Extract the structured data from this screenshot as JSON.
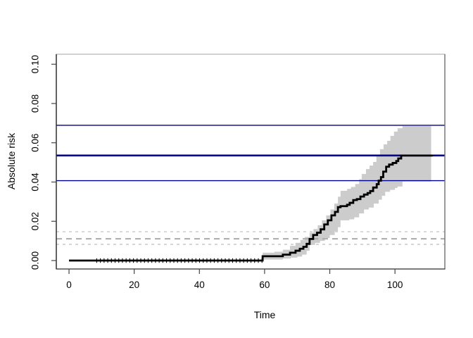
{
  "chart_data": {
    "type": "line",
    "subtype": "step-function-with-confidence-band",
    "title": "",
    "xlabel": "Time",
    "ylabel": "Absolute risk",
    "xlim": [
      -3.9,
      115.3
    ],
    "ylim": [
      -0.0043,
      0.1051
    ],
    "x_ticks": [
      0,
      20,
      40,
      60,
      80,
      100
    ],
    "y_ticks": [
      "0.00",
      "0.02",
      "0.04",
      "0.06",
      "0.08",
      "0.10"
    ],
    "grid": false,
    "legend": null,
    "curve": {
      "name": "absolute-risk-estimate",
      "color": "#000000",
      "width": 2.8,
      "end_time": 111.6,
      "steps": [
        [
          0,
          0
        ],
        [
          59.4,
          0.0022
        ],
        [
          65.6,
          0.003
        ],
        [
          67.8,
          0.004
        ],
        [
          69.5,
          0.005
        ],
        [
          70.8,
          0.006
        ],
        [
          71.9,
          0.007
        ],
        [
          72.9,
          0.0085
        ],
        [
          73.8,
          0.011
        ],
        [
          74.9,
          0.013
        ],
        [
          76.1,
          0.0142
        ],
        [
          77.2,
          0.0159
        ],
        [
          78.3,
          0.0184
        ],
        [
          79.4,
          0.0205
        ],
        [
          80.5,
          0.023
        ],
        [
          81.6,
          0.0248
        ],
        [
          82.5,
          0.0272
        ],
        [
          83.3,
          0.0277
        ],
        [
          85.3,
          0.0284
        ],
        [
          86.1,
          0.0294
        ],
        [
          87.2,
          0.0308
        ],
        [
          88.3,
          0.0313
        ],
        [
          89.4,
          0.0326
        ],
        [
          90.5,
          0.0336
        ],
        [
          91.6,
          0.0344
        ],
        [
          92.4,
          0.0354
        ],
        [
          93.3,
          0.0372
        ],
        [
          94.4,
          0.0389
        ],
        [
          95.0,
          0.0407
        ],
        [
          95.7,
          0.0425
        ],
        [
          96.4,
          0.0453
        ],
        [
          97.3,
          0.0478
        ],
        [
          98.2,
          0.0489
        ],
        [
          99.3,
          0.0497
        ],
        [
          100.4,
          0.0507
        ],
        [
          101.0,
          0.052
        ],
        [
          101.9,
          0.0535
        ]
      ]
    },
    "band": {
      "name": "confidence-band",
      "color": "#cccccc",
      "start_time": 59.4,
      "end_time": 111.1,
      "upper": [
        [
          59.4,
          0.004
        ],
        [
          63.0,
          0.0045
        ],
        [
          65.6,
          0.0055
        ],
        [
          67.8,
          0.0075
        ],
        [
          69.5,
          0.009
        ],
        [
          71.0,
          0.0105
        ],
        [
          72.3,
          0.012
        ],
        [
          73.8,
          0.0142
        ],
        [
          75.0,
          0.016
        ],
        [
          76.3,
          0.018
        ],
        [
          77.6,
          0.0205
        ],
        [
          78.9,
          0.023
        ],
        [
          80.2,
          0.026
        ],
        [
          81.4,
          0.029
        ],
        [
          82.5,
          0.0325
        ],
        [
          83.3,
          0.0355
        ],
        [
          85.3,
          0.0365
        ],
        [
          86.5,
          0.0375
        ],
        [
          87.8,
          0.039
        ],
        [
          89.0,
          0.0415
        ],
        [
          89.8,
          0.0441
        ],
        [
          91.1,
          0.0466
        ],
        [
          92.2,
          0.0484
        ],
        [
          93.3,
          0.0502
        ],
        [
          94.3,
          0.0531
        ],
        [
          95.4,
          0.0567
        ],
        [
          96.5,
          0.0592
        ],
        [
          97.6,
          0.061
        ],
        [
          98.6,
          0.0635
        ],
        [
          99.7,
          0.0657
        ],
        [
          100.8,
          0.0674
        ],
        [
          102.3,
          0.0685
        ]
      ],
      "lower": [
        [
          59.4,
          0.0005
        ],
        [
          65.6,
          0.001
        ],
        [
          68.0,
          0.0015
        ],
        [
          70.0,
          0.002
        ],
        [
          71.5,
          0.003
        ],
        [
          72.9,
          0.005
        ],
        [
          73.8,
          0.008
        ],
        [
          75.5,
          0.009
        ],
        [
          77.0,
          0.01
        ],
        [
          78.5,
          0.0115
        ],
        [
          80.0,
          0.013
        ],
        [
          81.5,
          0.015
        ],
        [
          82.5,
          0.017
        ],
        [
          83.3,
          0.0205
        ],
        [
          86.0,
          0.021
        ],
        [
          87.5,
          0.022
        ],
        [
          89.0,
          0.024
        ],
        [
          90.5,
          0.026
        ],
        [
          92.0,
          0.027
        ],
        [
          93.5,
          0.029
        ],
        [
          95.0,
          0.031
        ],
        [
          96.0,
          0.033
        ],
        [
          97.0,
          0.035
        ],
        [
          98.5,
          0.036
        ],
        [
          100.0,
          0.037
        ],
        [
          100.8,
          0.0377
        ],
        [
          102.3,
          0.0402
        ]
      ]
    },
    "hlines": [
      {
        "name": "upper-ci-line",
        "value": 0.0689,
        "color": "#00008B",
        "width": 1.3
      },
      {
        "name": "point-estimate-line",
        "value": 0.0535,
        "color": "#00008B",
        "width": 2.6
      },
      {
        "name": "lower-ci-line",
        "value": 0.0407,
        "color": "#00008B",
        "width": 1.3
      }
    ],
    "dashed_lines": [
      {
        "name": "reference-upper-dashed",
        "value": 0.0147,
        "color": "#c8c8c8",
        "width": 1.4,
        "dash": "4 5"
      },
      {
        "name": "reference-mid-dashed",
        "value": 0.0111,
        "color": "#ababab",
        "width": 2.0,
        "dash": "8 6"
      },
      {
        "name": "reference-lower-dashed",
        "value": 0.00825,
        "color": "#c8c8c8",
        "width": 1.4,
        "dash": "4 5"
      }
    ],
    "censor_marks": {
      "from": 8.5,
      "to": 59.2,
      "count": 46,
      "color": "#000000"
    }
  },
  "style_colors": {
    "background": "#ffffff",
    "curve": "#000000",
    "band_gray": "#cccccc",
    "navy": "#00008B",
    "dashed_light_gray": "#c8c8c8",
    "dashed_mid_gray": "#ababab",
    "box_top": "#c3c3c3",
    "box_right": "#707070",
    "box_left": "#2f2f2f",
    "box_bottom": "#2f2f2f",
    "tick": "#444444",
    "tick_label": "#000000"
  }
}
